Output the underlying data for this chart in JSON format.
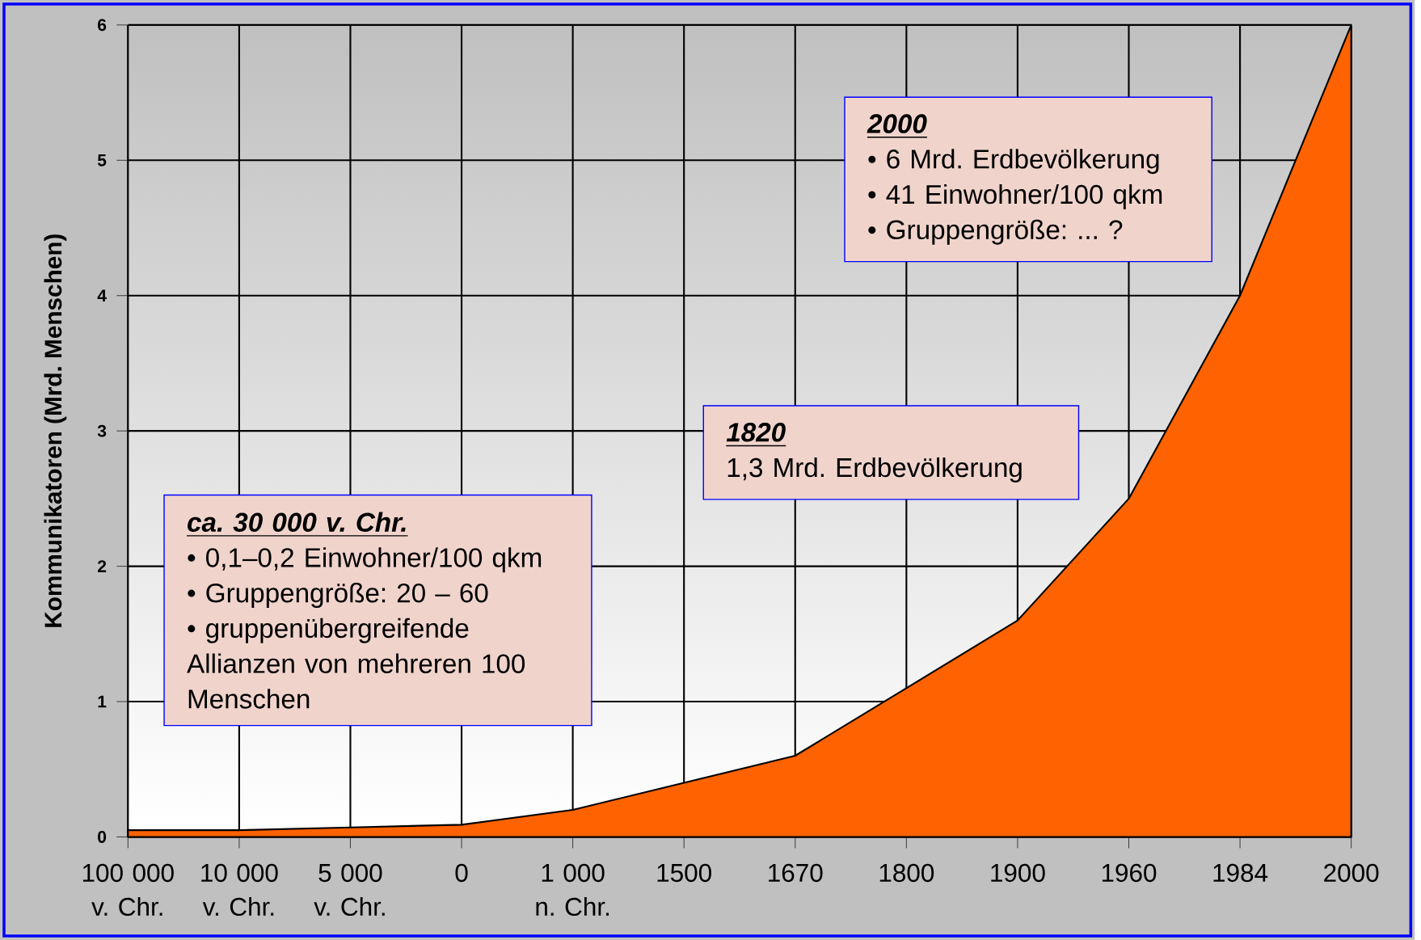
{
  "chart_data": {
    "type": "area",
    "ylabel": "Kommunikatoren (Mrd. Menschen)",
    "categories": [
      "100 000 v. Chr.",
      "10 000 v. Chr.",
      "5 000 v. Chr.",
      "0",
      "1 000 n. Chr.",
      "1500",
      "1670",
      "1800",
      "1900",
      "1960",
      "1984",
      "2000"
    ],
    "values": [
      0.05,
      0.05,
      0.07,
      0.09,
      0.2,
      0.4,
      0.6,
      1.1,
      1.6,
      2.5,
      4.0,
      6.0
    ],
    "color": "#ff6200",
    "ylim": [
      0,
      6
    ],
    "yticks": [
      0,
      1,
      2,
      3,
      4,
      5,
      6
    ],
    "grid": true,
    "annotations": [
      "ca. 30 000 v. Chr.",
      "• 0,1–0,2 Einwohner/100 qkm",
      "• Gruppengröße: 20 – 60",
      "• gruppenübergreifende Allianzen von mehreren 100 Menschen",
      "1820",
      "1,3 Mrd. Erdbevölkerung",
      "2000",
      "• 6 Mrd. Erdbevölkerung",
      "• 41 Einwohner/100 qkm",
      "• Gruppengröße: ... ?"
    ]
  }
}
